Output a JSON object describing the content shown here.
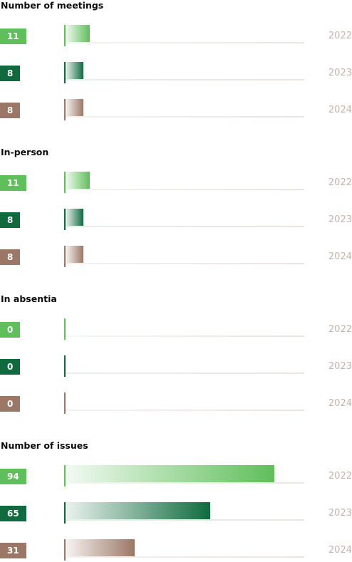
{
  "chart_data": [
    {
      "type": "bar",
      "title": "Number of meetings",
      "categories": [
        "2022",
        "2023",
        "2024"
      ],
      "values": [
        11,
        8,
        8
      ],
      "xlim": [
        0,
        100
      ]
    },
    {
      "type": "bar",
      "title": "In-person",
      "categories": [
        "2022",
        "2023",
        "2024"
      ],
      "values": [
        11,
        8,
        8
      ],
      "xlim": [
        0,
        100
      ]
    },
    {
      "type": "bar",
      "title": "In absentia",
      "categories": [
        "2022",
        "2023",
        "2024"
      ],
      "values": [
        0,
        0,
        0
      ],
      "xlim": [
        0,
        100
      ]
    },
    {
      "type": "bar",
      "title": "Number of issues",
      "categories": [
        "2022",
        "2023",
        "2024"
      ],
      "values": [
        94,
        65,
        31
      ],
      "xlim": [
        0,
        100
      ]
    }
  ],
  "colors": {
    "2022": "#5fbf5a",
    "2023": "#0f6b3e",
    "2024": "#9c7766",
    "year_label": "#c9b3a6"
  }
}
